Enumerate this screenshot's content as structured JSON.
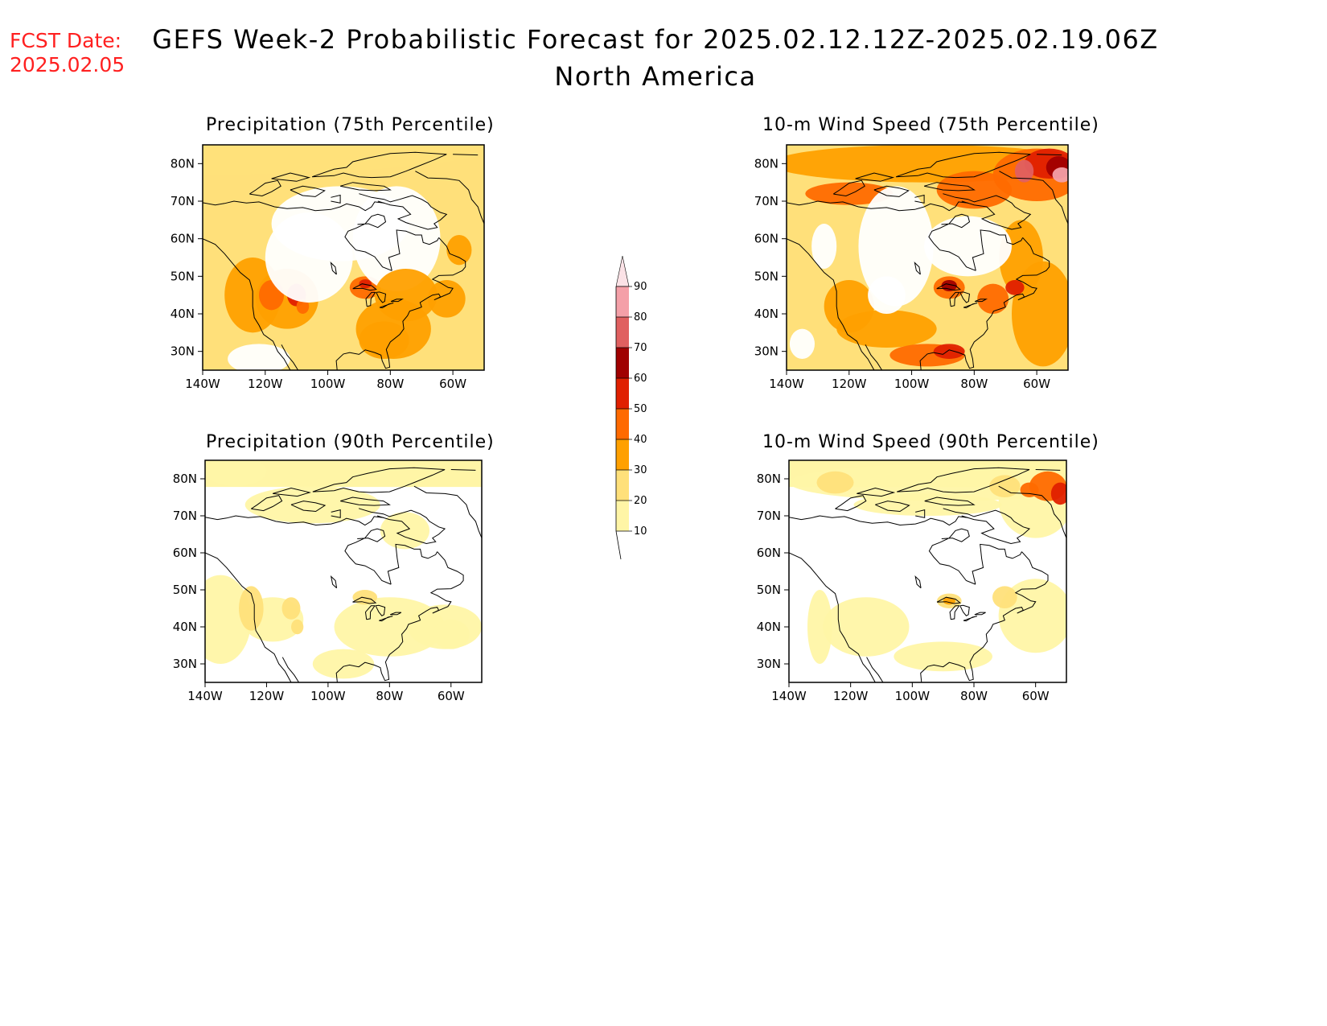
{
  "forecast_date": {
    "label": "FCST Date:",
    "value": "2025.02.05"
  },
  "title": "GEFS Week-2 Probabilistic Forecast for 2025.02.12.12Z-2025.02.19.06Z",
  "subtitle": "North America",
  "colorbar": {
    "levels": [
      "10",
      "20",
      "30",
      "40",
      "50",
      "60",
      "70",
      "80",
      "90"
    ],
    "colors": [
      "#fff5a6",
      "#ffe07a",
      "#ffa000",
      "#ff6a00",
      "#e02000",
      "#a00000",
      "#e06060",
      "#f4a0a8",
      "#fbe2e6"
    ]
  },
  "lat_labels": [
    "80N",
    "70N",
    "60N",
    "50N",
    "40N",
    "30N"
  ],
  "lon_labels": [
    "140W",
    "120W",
    "100W",
    "80W",
    "60W"
  ],
  "panels": [
    {
      "id": "precip-75",
      "title": "Precipitation (75th Percentile)",
      "dominant": [
        "#ffe07a",
        "#ffa000",
        "#ff6a00"
      ]
    },
    {
      "id": "wind-75",
      "title": "10-m Wind Speed (75th Percentile)",
      "dominant": [
        "#ffa000",
        "#ff6a00",
        "#e02000",
        "#a00000"
      ]
    },
    {
      "id": "precip-90",
      "title": "Precipitation (90th Percentile)",
      "dominant": [
        "#fff5a6",
        "#ffe07a"
      ]
    },
    {
      "id": "wind-90",
      "title": "10-m Wind Speed (90th Percentile)",
      "dominant": [
        "#fff5a6",
        "#ffe07a",
        "#ff6a00"
      ]
    }
  ]
}
